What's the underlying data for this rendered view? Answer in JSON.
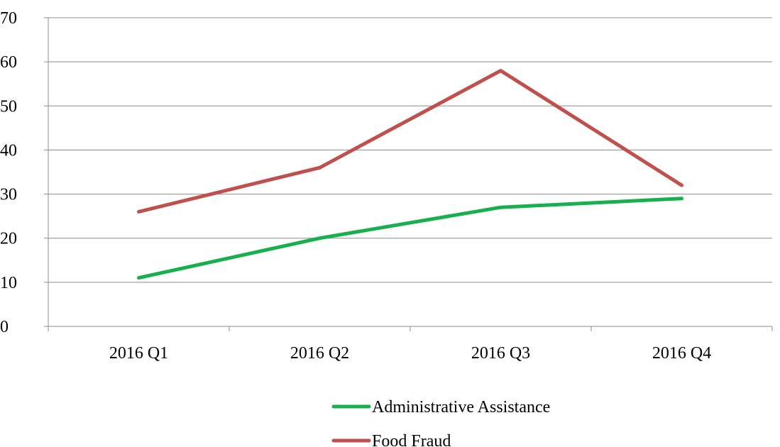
{
  "chart_data": {
    "type": "line",
    "title": "",
    "xlabel": "",
    "ylabel": "",
    "categories": [
      "2016 Q1",
      "2016 Q2",
      "2016 Q3",
      "2016 Q4"
    ],
    "ylim": [
      0,
      70
    ],
    "yticks": [
      0,
      10,
      20,
      30,
      40,
      50,
      60,
      70
    ],
    "grid": true,
    "legend_position": "bottom",
    "series": [
      {
        "name": "Administrative Assistance",
        "values": [
          11,
          20,
          27,
          29
        ],
        "color": "#18b04f"
      },
      {
        "name": "Food Fraud",
        "values": [
          26,
          36,
          58,
          32
        ],
        "color": "#c0504d"
      }
    ]
  }
}
